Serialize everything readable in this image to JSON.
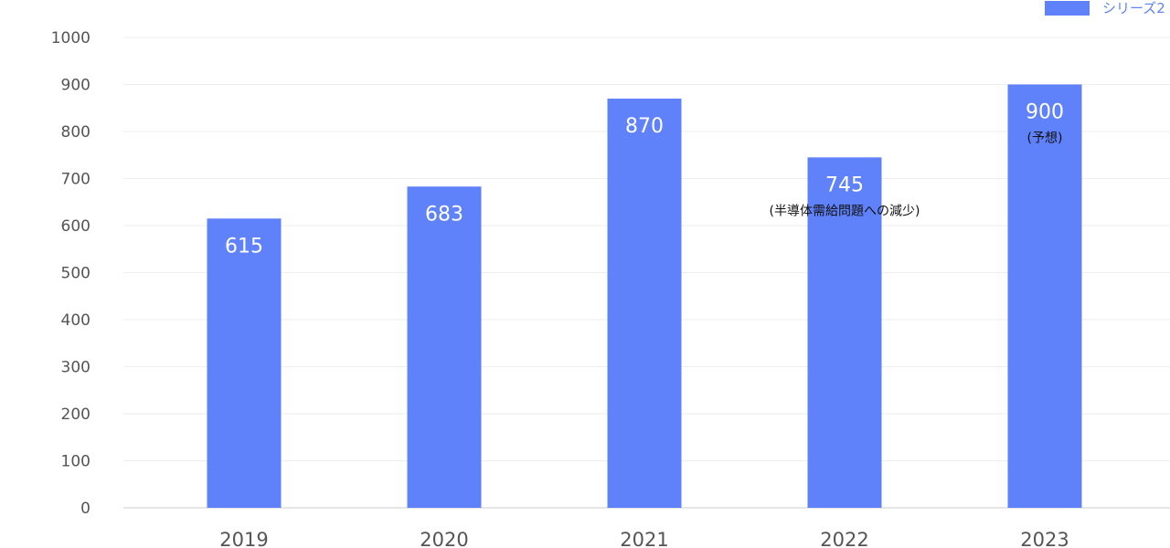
{
  "chart_data": {
    "type": "bar",
    "categories": [
      "2019",
      "2020",
      "2021",
      "2022",
      "2023"
    ],
    "series": [
      {
        "name": "シリーズ2",
        "values": [
          615,
          683,
          870,
          745,
          900
        ],
        "color": "#5f81f9"
      }
    ],
    "data_labels": [
      "615",
      "683",
      "870",
      "745",
      "900"
    ],
    "annotations": [
      "",
      "",
      "",
      "(半導体需給問題への減少)",
      "(予想)"
    ],
    "yticks": [
      "0",
      "100",
      "200",
      "300",
      "400",
      "500",
      "600",
      "700",
      "800",
      "900",
      "1000"
    ],
    "ylim": [
      0,
      1000
    ],
    "grid": true,
    "legend": "top-right",
    "title": "",
    "xlabel": "",
    "ylabel": ""
  }
}
